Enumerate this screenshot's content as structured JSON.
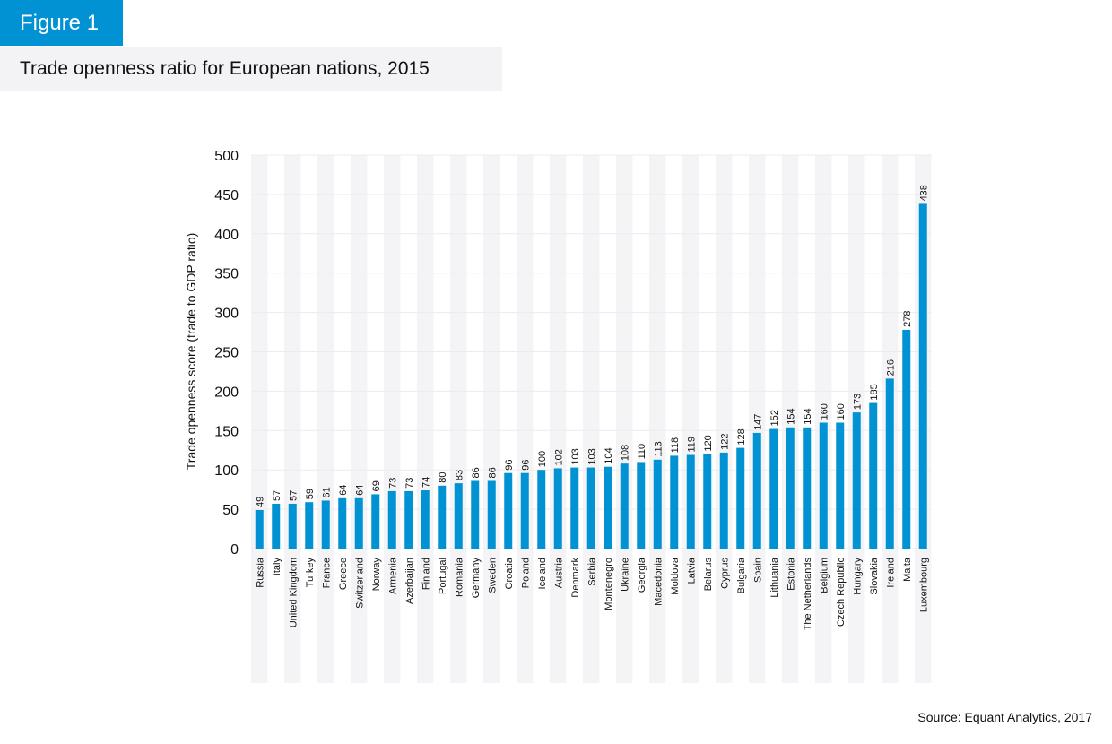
{
  "figure_label": "Figure 1",
  "title": "Trade openness ratio for European nations, 2015",
  "source": "Source: Equant Analytics, 2017",
  "colors": {
    "bar": "#0092d2",
    "badge": "#0092d2",
    "stripe": "#f4f4f7",
    "grid": "#ececf0"
  },
  "chart_data": {
    "type": "bar",
    "title": "Trade openness ratio for European nations, 2015",
    "xlabel": "",
    "ylabel": "Trade openness score (trade to GDP ratio)",
    "ylim": [
      0,
      500
    ],
    "yticks": [
      0,
      50,
      100,
      150,
      200,
      250,
      300,
      350,
      400,
      450,
      500
    ],
    "grid": true,
    "data_labels": true,
    "categories": [
      "Russia",
      "Italy",
      "United Kingdom",
      "Turkey",
      "France",
      "Greece",
      "Switzerland",
      "Norway",
      "Armenia",
      "Azerbaijan",
      "Finland",
      "Portugal",
      "Romania",
      "Germany",
      "Sweden",
      "Croatia",
      "Poland",
      "Iceland",
      "Austria",
      "Denmark",
      "Serbia",
      "Montenegro",
      "Ukraine",
      "Georgia",
      "Macedonia",
      "Moldova",
      "Latvia",
      "Belarus",
      "Cyprus",
      "Bulgaria",
      "Spain",
      "Lithuania",
      "Estonia",
      "The Netherlands",
      "Belgium",
      "Czech Republic",
      "Hungary",
      "Slovakia",
      "Ireland",
      "Malta",
      "Luxembourg"
    ],
    "values": [
      49,
      57,
      57,
      59,
      61,
      64,
      64,
      69,
      73,
      73,
      74,
      80,
      83,
      86,
      86,
      96,
      96,
      100,
      102,
      103,
      103,
      104,
      108,
      110,
      113,
      118,
      119,
      120,
      122,
      128,
      147,
      152,
      154,
      154,
      160,
      160,
      173,
      185,
      216,
      278,
      438
    ]
  }
}
